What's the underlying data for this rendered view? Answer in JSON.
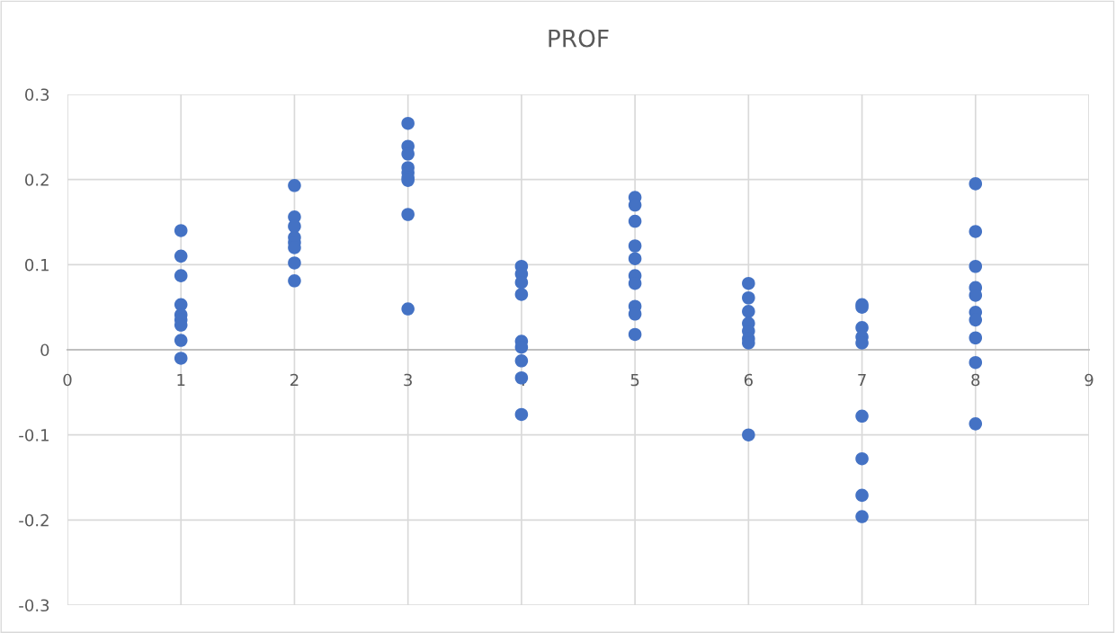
{
  "chart_data": {
    "type": "scatter",
    "title": "PROF",
    "x": [
      1,
      1,
      1,
      1,
      1,
      1,
      1,
      1,
      1,
      2,
      2,
      2,
      2,
      2,
      2,
      2,
      2,
      3,
      3,
      3,
      3,
      3,
      3,
      3,
      3,
      3,
      4,
      4,
      4,
      4,
      4,
      4,
      4,
      4,
      4,
      5,
      5,
      5,
      5,
      5,
      5,
      5,
      5,
      5,
      5,
      6,
      6,
      6,
      6,
      6,
      6,
      6,
      6,
      7,
      7,
      7,
      7,
      7,
      7,
      7,
      7,
      7,
      8,
      8,
      8,
      8,
      8,
      8,
      8,
      8,
      8,
      8
    ],
    "series": [
      {
        "color": "#4472c4",
        "values": [
          0.14,
          0.11,
          0.087,
          0.053,
          0.041,
          0.035,
          0.029,
          0.011,
          -0.01,
          0.193,
          0.156,
          0.145,
          0.132,
          0.126,
          0.12,
          0.102,
          0.081,
          0.266,
          0.239,
          0.23,
          0.214,
          0.208,
          0.202,
          0.199,
          0.159,
          0.048,
          0.098,
          0.089,
          0.079,
          0.065,
          0.01,
          0.003,
          -0.013,
          -0.033,
          -0.076,
          0.179,
          0.17,
          0.151,
          0.122,
          0.107,
          0.087,
          0.078,
          0.051,
          0.042,
          0.018,
          0.078,
          0.061,
          0.045,
          0.031,
          0.022,
          0.013,
          0.008,
          -0.1,
          0.053,
          0.05,
          0.026,
          0.015,
          0.008,
          -0.078,
          -0.128,
          -0.171,
          -0.196,
          0.195,
          0.139,
          0.098,
          0.073,
          0.064,
          0.044,
          0.035,
          0.014,
          -0.015,
          -0.087
        ]
      }
    ],
    "xlim": [
      0,
      9
    ],
    "xticks": [
      0,
      1,
      2,
      3,
      4,
      5,
      6,
      7,
      8,
      9
    ],
    "ylim": [
      -0.3,
      0.3
    ],
    "yticks": [
      -0.3,
      -0.2,
      -0.1,
      0,
      0.1,
      0.2,
      0.3
    ],
    "grid": true,
    "marker": "circle"
  }
}
